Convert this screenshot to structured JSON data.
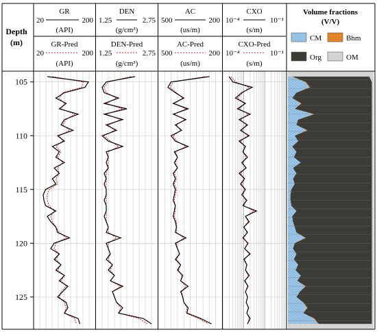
{
  "chart_data": {
    "type": "line",
    "title": "",
    "y_axis": {
      "label_line1": "Depth",
      "label_line2": "(m)",
      "range": [
        104,
        128
      ],
      "ticks": [
        "105",
        "110",
        "115",
        "120",
        "125"
      ],
      "tick_values": [
        105,
        110,
        115,
        120,
        125
      ],
      "inverted": true
    },
    "tracks": [
      {
        "name": "GR",
        "unit": "(API)",
        "min_label": "20",
        "max_label": "200",
        "pred_name": "GR-Pred",
        "pred_unit": "(API)",
        "pred_min_label": "20",
        "pred_max_label": "200",
        "scale": "linear",
        "range": [
          20,
          200
        ],
        "depth": [
          104.5,
          105,
          105.5,
          106,
          106.5,
          107,
          107.5,
          108,
          108.5,
          109,
          109.5,
          110,
          110.5,
          111,
          111.5,
          112,
          112.5,
          113,
          113.5,
          114,
          114.5,
          115,
          115.5,
          116,
          116.5,
          117,
          117.5,
          118,
          118.5,
          119,
          119.5,
          120,
          120.5,
          121,
          121.5,
          122,
          122.5,
          123,
          123.5,
          124,
          124.5,
          125,
          125.5,
          126,
          126.5,
          127,
          127.5
        ],
        "measured": [
          60,
          180,
          170,
          110,
          85,
          115,
          95,
          150,
          110,
          100,
          135,
          90,
          110,
          75,
          95,
          85,
          110,
          80,
          95,
          75,
          85,
          55,
          48,
          50,
          55,
          85,
          60,
          70,
          85,
          90,
          125,
          80,
          70,
          95,
          80,
          100,
          85,
          110,
          95,
          120,
          105,
          90,
          115,
          120,
          110,
          150,
          155
        ],
        "predicted": [
          75,
          165,
          160,
          105,
          95,
          110,
          100,
          140,
          115,
          105,
          125,
          95,
          105,
          85,
          100,
          90,
          105,
          90,
          95,
          85,
          90,
          65,
          60,
          60,
          65,
          80,
          70,
          75,
          85,
          95,
          115,
          85,
          80,
          95,
          85,
          100,
          90,
          110,
          100,
          115,
          100,
          95,
          110,
          115,
          110,
          140,
          145
        ]
      },
      {
        "name": "DEN",
        "unit": "(g/cm³)",
        "min_label": "1.25",
        "max_label": "2.75",
        "pred_name": "DEN-Pred",
        "pred_unit": "(g/cm³)",
        "pred_min_label": "1.25",
        "pred_max_label": "2.75",
        "scale": "linear",
        "range": [
          1.25,
          2.75
        ],
        "depth": [
          104.5,
          105,
          105.5,
          106,
          106.5,
          107,
          107.5,
          108,
          108.5,
          109,
          109.5,
          110,
          110.5,
          111,
          111.5,
          112,
          112.5,
          113,
          113.5,
          114,
          114.5,
          115,
          115.5,
          116,
          116.5,
          117,
          117.5,
          118,
          118.5,
          119,
          119.5,
          120,
          120.5,
          121,
          121.5,
          122,
          122.5,
          123,
          123.5,
          124,
          124.5,
          125,
          125.5,
          126,
          126.5,
          127,
          127.5
        ],
        "measured": [
          2.2,
          1.5,
          1.4,
          1.45,
          1.8,
          1.45,
          2.0,
          1.45,
          1.9,
          1.5,
          1.75,
          1.4,
          1.55,
          1.9,
          1.5,
          1.55,
          1.5,
          1.55,
          1.45,
          1.5,
          1.45,
          1.5,
          1.5,
          1.45,
          1.5,
          1.5,
          1.45,
          1.5,
          1.55,
          1.5,
          1.85,
          1.5,
          1.55,
          1.6,
          1.5,
          1.65,
          1.55,
          1.7,
          1.6,
          1.9,
          1.65,
          1.7,
          1.75,
          1.9,
          1.8,
          2.4,
          2.6
        ],
        "predicted": [
          2.1,
          1.55,
          1.45,
          1.5,
          1.75,
          1.5,
          1.9,
          1.5,
          1.85,
          1.55,
          1.7,
          1.45,
          1.6,
          1.8,
          1.55,
          1.55,
          1.55,
          1.55,
          1.5,
          1.5,
          1.5,
          1.5,
          1.5,
          1.5,
          1.5,
          1.5,
          1.5,
          1.5,
          1.55,
          1.55,
          1.75,
          1.55,
          1.55,
          1.6,
          1.55,
          1.65,
          1.6,
          1.7,
          1.6,
          1.85,
          1.65,
          1.7,
          1.75,
          1.85,
          1.8,
          2.3,
          2.5
        ]
      },
      {
        "name": "AC",
        "unit": "(us/m)",
        "min_label": "500",
        "max_label": "200",
        "pred_name": "AC-Pred",
        "pred_unit": "(us/m)",
        "pred_min_label": "500",
        "pred_max_label": "200",
        "scale": "linear",
        "range": [
          500,
          200
        ],
        "depth": [
          104.5,
          105,
          105.5,
          106,
          106.5,
          107,
          107.5,
          108,
          108.5,
          109,
          109.5,
          110,
          110.5,
          111,
          111.5,
          112,
          112.5,
          113,
          113.5,
          114,
          114.5,
          115,
          115.5,
          116,
          116.5,
          117,
          117.5,
          118,
          118.5,
          119,
          119.5,
          120,
          120.5,
          121,
          121.5,
          122,
          122.5,
          123,
          123.5,
          124,
          124.5,
          125,
          125.5,
          126,
          126.5,
          127,
          127.5
        ],
        "measured": [
          260,
          440,
          455,
          420,
          380,
          430,
          360,
          430,
          370,
          420,
          390,
          440,
          420,
          360,
          425,
          410,
          425,
          410,
          430,
          420,
          430,
          420,
          425,
          430,
          420,
          425,
          430,
          420,
          415,
          420,
          370,
          420,
          410,
          400,
          420,
          395,
          410,
          385,
          395,
          360,
          395,
          385,
          380,
          360,
          365,
          300,
          250
        ],
        "predicted": [
          280,
          430,
          445,
          415,
          385,
          425,
          370,
          425,
          375,
          415,
          395,
          430,
          415,
          370,
          420,
          410,
          420,
          410,
          425,
          415,
          425,
          415,
          420,
          425,
          420,
          420,
          425,
          415,
          415,
          415,
          380,
          415,
          410,
          400,
          415,
          395,
          405,
          390,
          395,
          370,
          390,
          385,
          380,
          365,
          370,
          310,
          265
        ]
      },
      {
        "name": "CXO",
        "unit": "(s/m)",
        "min_label": "10⁻⁴",
        "max_label": "10⁻¹",
        "pred_name": "CXO-Pred",
        "pred_unit": "(s/m)",
        "pred_min_label": "10⁻⁴",
        "pred_max_label": "10⁻¹",
        "scale": "log",
        "range": [
          0.0001,
          0.1
        ],
        "depth": [
          104.5,
          105,
          105.5,
          106,
          106.5,
          107,
          107.5,
          108,
          108.5,
          109,
          109.5,
          110,
          110.5,
          111,
          111.5,
          112,
          112.5,
          113,
          113.5,
          114,
          114.5,
          115,
          115.5,
          116,
          116.5,
          117,
          117.5,
          118,
          118.5,
          119,
          119.5,
          120,
          120.5,
          121,
          121.5,
          122,
          122.5,
          123,
          123.5,
          124,
          124.5,
          125,
          125.5,
          126,
          126.5,
          127,
          127.5
        ],
        "measured": [
          0.0002,
          0.0003,
          0.0025,
          0.0008,
          0.0004,
          0.0012,
          0.0005,
          0.002,
          0.0006,
          0.0015,
          0.0007,
          0.0018,
          0.0006,
          0.0012,
          0.0009,
          0.0015,
          0.0008,
          0.0013,
          0.0006,
          0.0011,
          0.0007,
          0.0012,
          0.0008,
          0.0014,
          0.0009,
          0.004,
          0.0012,
          0.0018,
          0.001,
          0.0015,
          0.0009,
          0.0016,
          0.0011,
          0.002,
          0.001,
          0.0014,
          0.0012,
          0.0018,
          0.0011,
          0.0016,
          0.0012,
          0.0015,
          0.0013,
          0.0017,
          0.0014,
          0.002,
          0.0015
        ],
        "predicted": [
          0.00025,
          0.0004,
          0.0018,
          0.0009,
          0.0005,
          0.0011,
          0.0006,
          0.0016,
          0.0007,
          0.0013,
          0.0008,
          0.0015,
          0.0007,
          0.0011,
          0.0009,
          0.0013,
          0.0009,
          0.0012,
          0.0007,
          0.001,
          0.0008,
          0.0011,
          0.0009,
          0.0012,
          0.001,
          0.003,
          0.0012,
          0.0016,
          0.001,
          0.0014,
          0.001,
          0.0015,
          0.0011,
          0.0018,
          0.0011,
          0.0014,
          0.0012,
          0.0016,
          0.0012,
          0.0015,
          0.0012,
          0.0015,
          0.0013,
          0.0016,
          0.0014,
          0.0018,
          0.0015
        ]
      }
    ],
    "volume_fractions": {
      "title": "Volume fractions",
      "unit": "(V/V)",
      "legend": [
        {
          "label": "CM",
          "color": "#9fc9ea"
        },
        {
          "label": "Bhm",
          "color": "#e8872a"
        },
        {
          "label": "Org",
          "color": "#3d3b35"
        },
        {
          "label": "OM",
          "color": "#d4d4d4"
        }
      ],
      "depth": [
        104.5,
        105,
        105.5,
        106,
        106.5,
        107,
        107.5,
        108,
        108.5,
        109,
        109.5,
        110,
        110.5,
        111,
        111.5,
        112,
        112.5,
        113,
        113.5,
        114,
        114.5,
        115,
        115.5,
        116,
        116.5,
        117,
        117.5,
        118,
        118.5,
        119,
        119.5,
        120,
        120.5,
        121,
        121.5,
        122,
        122.5,
        123,
        123.5,
        124,
        124.5,
        125,
        125.5,
        126,
        126.5,
        127,
        127.5
      ],
      "cm": [
        0.05,
        0.2,
        0.25,
        0.1,
        0.05,
        0.15,
        0.08,
        0.3,
        0.12,
        0.1,
        0.22,
        0.08,
        0.12,
        0.05,
        0.1,
        0.07,
        0.15,
        0.06,
        0.1,
        0.06,
        0.08,
        0.04,
        0.03,
        0.03,
        0.04,
        0.1,
        0.05,
        0.06,
        0.08,
        0.1,
        0.2,
        0.08,
        0.06,
        0.1,
        0.07,
        0.12,
        0.09,
        0.15,
        0.11,
        0.2,
        0.14,
        0.1,
        0.18,
        0.22,
        0.18,
        0.3,
        0.35
      ],
      "bhm": [
        0.0,
        0.01,
        0.01,
        0.0,
        0.0,
        0.01,
        0.0,
        0.01,
        0.0,
        0.0,
        0.01,
        0.0,
        0.0,
        0.0,
        0.0,
        0.0,
        0.0,
        0.0,
        0.0,
        0.0,
        0.0,
        0.0,
        0.0,
        0.0,
        0.0,
        0.0,
        0.0,
        0.0,
        0.0,
        0.0,
        0.01,
        0.0,
        0.0,
        0.0,
        0.0,
        0.0,
        0.0,
        0.0,
        0.0,
        0.01,
        0.0,
        0.0,
        0.0,
        0.01,
        0.0,
        0.01,
        0.01
      ],
      "org": [
        0.9,
        0.77,
        0.72,
        0.88,
        0.93,
        0.82,
        0.9,
        0.67,
        0.86,
        0.88,
        0.75,
        0.9,
        0.86,
        0.93,
        0.88,
        0.91,
        0.83,
        0.92,
        0.88,
        0.92,
        0.9,
        0.94,
        0.95,
        0.95,
        0.94,
        0.88,
        0.93,
        0.92,
        0.9,
        0.88,
        0.77,
        0.9,
        0.92,
        0.88,
        0.91,
        0.86,
        0.89,
        0.83,
        0.87,
        0.77,
        0.84,
        0.88,
        0.8,
        0.75,
        0.8,
        0.67,
        0.62
      ]
    }
  }
}
